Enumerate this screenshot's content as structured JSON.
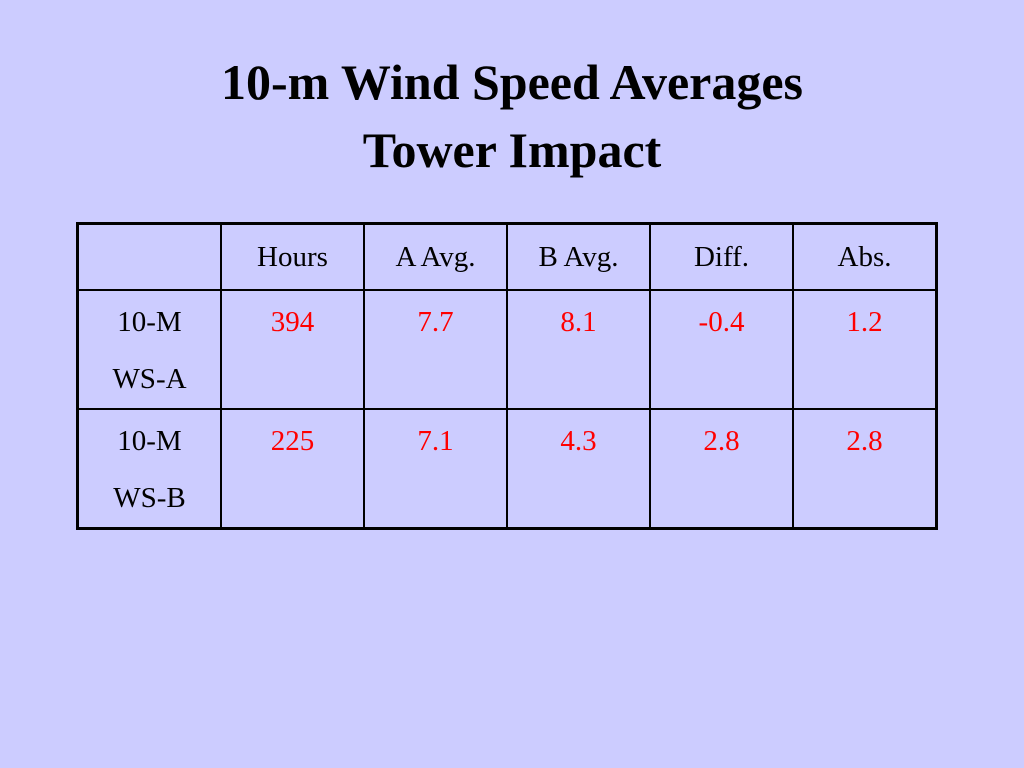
{
  "header": {
    "title_lines": [
      "10-m Wind Speed Averages",
      "Tower Impact"
    ]
  },
  "table": {
    "columns": [
      "",
      "Hours",
      "A Avg.",
      "B Avg.",
      "Diff.",
      "Abs."
    ],
    "rows": [
      {
        "label_lines": [
          "10-M",
          "WS-A"
        ],
        "cells": [
          "394",
          "7.7",
          "8.1",
          "-0.4",
          "1.2"
        ]
      },
      {
        "label_lines": [
          "10-M",
          "WS-B"
        ],
        "cells": [
          "225",
          "7.1",
          "4.3",
          "2.8",
          "2.8"
        ]
      }
    ]
  }
}
